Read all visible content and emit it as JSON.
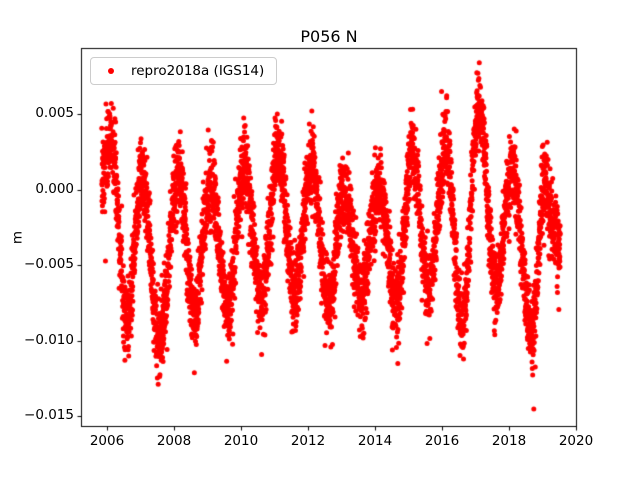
{
  "chart_data": {
    "type": "scatter",
    "title": "P056 N",
    "xlabel": "",
    "ylabel": "m",
    "grid": false,
    "xlim": [
      2005.22,
      2020.03
    ],
    "ylim": [
      -0.0157,
      0.0094
    ],
    "xticks": {
      "values": [
        2006,
        2008,
        2010,
        2012,
        2014,
        2016,
        2018,
        2020
      ],
      "labels": [
        "2006",
        "2008",
        "2010",
        "2012",
        "2014",
        "2016",
        "2018",
        "2020"
      ]
    },
    "yticks": {
      "values": [
        0.005,
        0.0,
        -0.005,
        -0.01,
        -0.015
      ],
      "labels": [
        "0.005",
        "0.000",
        "−0.005",
        "−0.010",
        "−0.015"
      ]
    },
    "legend": {
      "position": "upper-left"
    },
    "series": [
      {
        "name": "repro2018a (IGS14)",
        "color": "#ff0000",
        "marker": "dot",
        "marker_radius": 2.5,
        "t_start": 2005.84,
        "t_end": 2019.53,
        "sampling_step_years": 0.00274,
        "noise_std": 0.0013,
        "seed": 7,
        "envelope": [
          [
            2005.84,
            0.0005
          ],
          [
            2006.12,
            0.0035
          ],
          [
            2006.6,
            -0.0085
          ],
          [
            2007.05,
            0.001
          ],
          [
            2007.55,
            -0.01
          ],
          [
            2008.12,
            0.0008
          ],
          [
            2008.6,
            -0.008
          ],
          [
            2009.1,
            0.0005
          ],
          [
            2009.6,
            -0.0078
          ],
          [
            2010.1,
            0.0015
          ],
          [
            2010.6,
            -0.007
          ],
          [
            2011.1,
            0.0025
          ],
          [
            2011.6,
            -0.0068
          ],
          [
            2012.1,
            0.0015
          ],
          [
            2012.62,
            -0.0075
          ],
          [
            2013.05,
            0.0
          ],
          [
            2013.6,
            -0.0068
          ],
          [
            2014.1,
            0.0002
          ],
          [
            2014.65,
            -0.0075
          ],
          [
            2015.1,
            0.0022
          ],
          [
            2015.6,
            -0.0062
          ],
          [
            2016.12,
            0.0028
          ],
          [
            2016.6,
            -0.0088
          ],
          [
            2017.1,
            0.0055
          ],
          [
            2017.6,
            -0.0062
          ],
          [
            2018.1,
            0.0012
          ],
          [
            2018.7,
            -0.0095
          ],
          [
            2019.05,
            0.0008
          ],
          [
            2019.3,
            -0.002
          ],
          [
            2019.53,
            -0.0045
          ]
        ],
        "outliers": [
          [
            2005.95,
            -0.0047
          ],
          [
            2012.68,
            -0.0104
          ],
          [
            2014.68,
            -0.0115
          ],
          [
            2018.74,
            -0.0145
          ]
        ]
      }
    ]
  }
}
